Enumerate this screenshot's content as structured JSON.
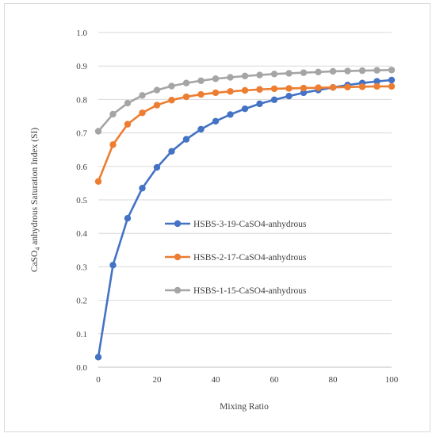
{
  "chart_data": {
    "type": "line",
    "xlabel": "Mixing Ratio",
    "ylabel_parts": [
      "CaSO",
      "4",
      " anhydrous Saturation Index (SI)"
    ],
    "xlim": [
      0,
      100
    ],
    "ylim": [
      0,
      1
    ],
    "x_ticks": [
      0,
      20,
      40,
      60,
      80,
      100
    ],
    "y_ticks": [
      0.0,
      0.1,
      0.2,
      0.3,
      0.4,
      0.5,
      0.6,
      0.7,
      0.8,
      0.9,
      1.0
    ],
    "y_tick_labels": [
      "0.0",
      "0.1",
      "0.2",
      "0.3",
      "0.4",
      "0.5",
      "0.6",
      "0.7",
      "0.8",
      "0.9",
      "1.0"
    ],
    "x_tick_labels": [
      "0",
      "20",
      "40",
      "60",
      "80",
      "100"
    ],
    "grid": "horizontal",
    "legend_position": "center",
    "x": [
      0,
      5,
      10,
      15,
      20,
      25,
      30,
      35,
      40,
      45,
      50,
      55,
      60,
      65,
      70,
      75,
      80,
      85,
      90,
      95,
      100
    ],
    "series": [
      {
        "name": "HSBS-3-19-CaSO4-anhydrous",
        "color": "#4472C4",
        "values": [
          0.03,
          0.305,
          0.445,
          0.535,
          0.597,
          0.645,
          0.681,
          0.711,
          0.735,
          0.755,
          0.772,
          0.787,
          0.799,
          0.81,
          0.82,
          0.828,
          0.836,
          0.843,
          0.849,
          0.854,
          0.858
        ]
      },
      {
        "name": "HSBS-2-17-CaSO4-anhydrous",
        "color": "#ED7D31",
        "values": [
          0.555,
          0.665,
          0.726,
          0.76,
          0.783,
          0.798,
          0.808,
          0.815,
          0.82,
          0.824,
          0.827,
          0.83,
          0.832,
          0.833,
          0.834,
          0.835,
          0.836,
          0.837,
          0.838,
          0.839,
          0.839
        ]
      },
      {
        "name": "HSBS-1-15-CaSO4-anhydrous",
        "color": "#A5A5A5",
        "values": [
          0.705,
          0.756,
          0.789,
          0.812,
          0.828,
          0.84,
          0.849,
          0.856,
          0.862,
          0.866,
          0.87,
          0.873,
          0.876,
          0.878,
          0.88,
          0.882,
          0.884,
          0.885,
          0.886,
          0.887,
          0.888
        ]
      }
    ]
  }
}
